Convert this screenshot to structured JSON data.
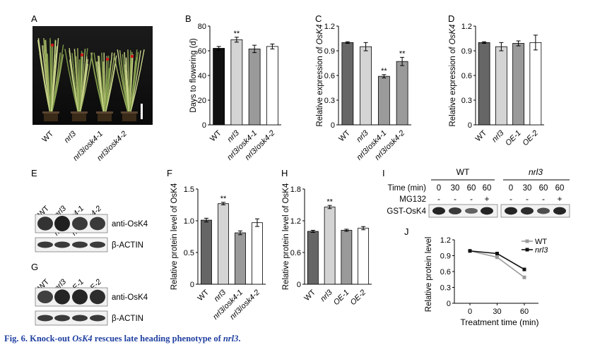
{
  "caption": {
    "prefix": "Fig. 6. Knock-out ",
    "gene": "OsK4",
    "mid": " rescues late heading phenotype of ",
    "mutant": "nrl3",
    "end": "."
  },
  "panels": {
    "A": "A",
    "B": "B",
    "C": "C",
    "D": "D",
    "E": "E",
    "F": "F",
    "G": "G",
    "H": "H",
    "I": "I",
    "J": "J"
  },
  "photo": {
    "labels": [
      "WT",
      "nrl3",
      "nrl3/osk4-1",
      "nrl3/osk4-2"
    ]
  },
  "chart_data": [
    {
      "panel": "B",
      "type": "bar",
      "ylabel": "Days to flowering (d)",
      "ylim": [
        0,
        80
      ],
      "yticks": [
        "0",
        "20",
        "40",
        "60",
        "80"
      ],
      "categories": [
        "WT",
        "nrl3",
        "nrl3/osk4-1",
        "nrl3/osk4-2"
      ],
      "values": [
        62,
        69,
        61.5,
        63.5
      ],
      "errors": [
        1.5,
        2,
        3,
        2
      ],
      "colors": [
        "#111111",
        "#d4d4d4",
        "#9a9a9a",
        "#ffffff"
      ],
      "sig": [
        "",
        "**",
        "",
        ""
      ]
    },
    {
      "panel": "C",
      "type": "bar",
      "ylabel_pre": "Relative expression of ",
      "ylabel_gene": "OsK4",
      "ylim": [
        0,
        1.2
      ],
      "yticks": [
        "0",
        "0.3",
        "0.6",
        "0.9",
        "1.2"
      ],
      "categories": [
        "WT",
        "nrl3",
        "nrl3/osk4-1",
        "nrl3/osk4-2"
      ],
      "values": [
        1.0,
        0.95,
        0.59,
        0.77
      ],
      "errors": [
        0.01,
        0.05,
        0.02,
        0.05
      ],
      "colors": [
        "#666666",
        "#d4d4d4",
        "#9a9a9a",
        "#9a9a9a"
      ],
      "sig": [
        "",
        "",
        "**",
        "**"
      ]
    },
    {
      "panel": "D",
      "type": "bar",
      "ylabel_pre": "Relative expression of ",
      "ylabel_gene": "OsK4",
      "ylim": [
        0,
        1.2
      ],
      "yticks": [
        "0",
        "0.3",
        "0.6",
        "0.9",
        "1.2"
      ],
      "categories": [
        "WT",
        "nrl3",
        "OE-1",
        "OE-2"
      ],
      "values": [
        1.0,
        0.95,
        0.99,
        1.0
      ],
      "errors": [
        0.01,
        0.05,
        0.03,
        0.09
      ],
      "colors": [
        "#666666",
        "#d4d4d4",
        "#9a9a9a",
        "#ffffff"
      ],
      "sig": [
        "",
        "",
        "",
        ""
      ]
    },
    {
      "panel": "F",
      "type": "bar",
      "ylabel": "Relative protein level of OsK4",
      "ylim": [
        0,
        1.5
      ],
      "yticks": [
        "0",
        "0.5",
        "1.0",
        "1.5"
      ],
      "categories": [
        "WT",
        "nrl3",
        "nrl3/osk4-1",
        "nrl3/osk4-2"
      ],
      "values": [
        1.01,
        1.27,
        0.81,
        0.97
      ],
      "errors": [
        0.03,
        0.02,
        0.03,
        0.06
      ],
      "colors": [
        "#666666",
        "#d4d4d4",
        "#9a9a9a",
        "#ffffff"
      ],
      "sig": [
        "",
        "**",
        "",
        ""
      ]
    },
    {
      "panel": "H",
      "type": "bar",
      "ylabel": "Relative protein level of OsK4",
      "ylim": [
        0,
        1.8
      ],
      "yticks": [
        "0",
        "0.6",
        "1.2",
        "1.8"
      ],
      "categories": [
        "WT",
        "nrl3",
        "OE-1",
        "OE-2"
      ],
      "values": [
        1.0,
        1.46,
        1.02,
        1.06
      ],
      "errors": [
        0.02,
        0.03,
        0.02,
        0.03
      ],
      "colors": [
        "#666666",
        "#d4d4d4",
        "#9a9a9a",
        "#ffffff"
      ],
      "sig": [
        "",
        "**",
        "",
        ""
      ]
    },
    {
      "panel": "J",
      "type": "line",
      "ylabel": "Relative protein level",
      "xlabel": "Treatment time (min)",
      "ylim": [
        0,
        1.2
      ],
      "yticks": [
        "0",
        "0.3",
        "0.6",
        "0.9",
        "1.2"
      ],
      "x": [
        0,
        30,
        60
      ],
      "xticks": [
        "0",
        "30",
        "60"
      ],
      "legend_position": "top-right",
      "series": [
        {
          "name": "WT",
          "values": [
            0.99,
            0.87,
            0.49
          ],
          "color": "#9a9a9a"
        },
        {
          "name": "nrl3",
          "values": [
            0.99,
            0.94,
            0.64
          ],
          "color": "#111111"
        }
      ]
    }
  ],
  "blots": {
    "E": {
      "lanes": [
        "WT",
        "nrl3",
        "nrl3/osk4-1",
        "nrl3/osk4-2"
      ],
      "rows": [
        "anti-OsK4",
        "β-ACTIN"
      ]
    },
    "G": {
      "lanes": [
        "WT",
        "nrl3",
        "OE-1",
        "OE-2"
      ],
      "rows": [
        "anti-OsK4",
        "β-ACTIN"
      ]
    },
    "I": {
      "group_wt": "WT",
      "group_mut": "nrl3",
      "time_label": "Time (min)",
      "times": [
        "0",
        "30",
        "60",
        "60",
        "0",
        "30",
        "60",
        "60"
      ],
      "mg_label": "MG132",
      "mg": [
        "-",
        "-",
        "-",
        "+",
        "-",
        "-",
        "-",
        "+"
      ],
      "row_label": "GST-OsK4"
    }
  }
}
